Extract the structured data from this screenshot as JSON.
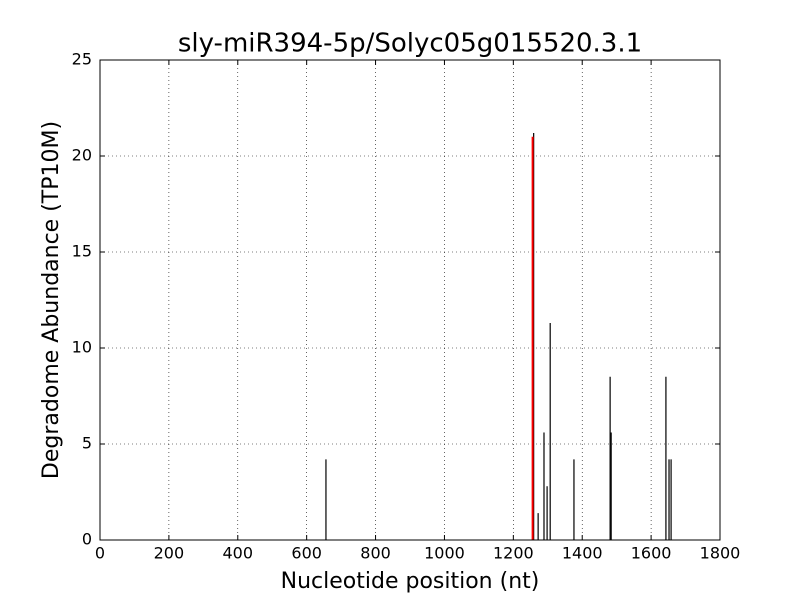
{
  "chart_data": {
    "type": "vlines",
    "title": "sly-miR394-5p/Solyc05g015520.3.1",
    "xlabel": "Nucleotide position (nt)",
    "ylabel": "Degradome Abundance (TP10M)",
    "series": [
      {
        "color": "#000000",
        "x": [
          656,
          1259,
          1272,
          1289,
          1298,
          1307,
          1376,
          1481,
          1484,
          1643,
          1652,
          1658
        ],
        "values": [
          4.2,
          21.2,
          1.4,
          5.6,
          2.8,
          11.3,
          4.2,
          8.5,
          5.6,
          8.5,
          4.2,
          4.2
        ]
      },
      {
        "color": "#ff0000",
        "x": [
          1256
        ],
        "values": [
          21.0
        ]
      }
    ],
    "xlim": [
      0,
      1800
    ],
    "xticks": [
      0,
      200,
      400,
      600,
      800,
      1000,
      1200,
      1400,
      1600,
      1800
    ],
    "ylim": [
      0,
      25
    ],
    "yticks": [
      0,
      5,
      10,
      15,
      20,
      25
    ],
    "grid": true
  }
}
